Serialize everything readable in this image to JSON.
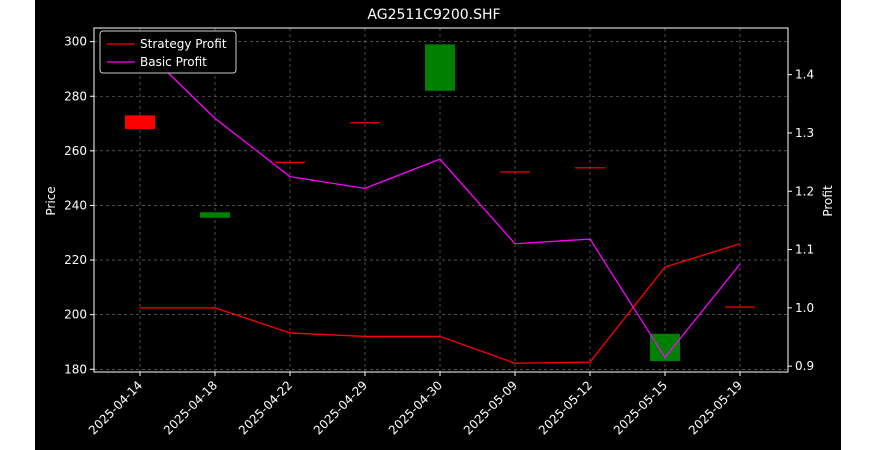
{
  "chart_data": {
    "type": "candlestick+line",
    "title": "AG2511C9200.SHF",
    "xlabel": "",
    "ylabel": "Price",
    "y2label": "Profit",
    "categories": [
      "2025-04-14",
      "2025-04-18",
      "2025-04-22",
      "2025-04-29",
      "2025-04-30",
      "2025-05-09",
      "2025-05-12",
      "2025-05-15",
      "2025-05-19"
    ],
    "ylim": [
      179,
      305
    ],
    "yticks": [
      180,
      200,
      220,
      240,
      260,
      280,
      300
    ],
    "y2lim": [
      0.89,
      1.48
    ],
    "y2ticks": [
      0.9,
      1.0,
      1.1,
      1.2,
      1.3,
      1.4
    ],
    "grid": true,
    "legend_position": "top-left",
    "candles": [
      {
        "date": "2025-04-14",
        "open": 268.0,
        "close": 273.0,
        "color": "#ff0000"
      },
      {
        "date": "2025-04-18",
        "open": 235.5,
        "close": 237.5,
        "color": "#008000"
      },
      {
        "date": "2025-04-22",
        "open": 256.0,
        "close": 256.0,
        "color": "#ff0000"
      },
      {
        "date": "2025-04-29",
        "open": 270.5,
        "close": 270.5,
        "color": "#ff0000"
      },
      {
        "date": "2025-04-30",
        "open": 282.0,
        "close": 299.0,
        "color": "#008000"
      },
      {
        "date": "2025-05-09",
        "open": 252.5,
        "close": 252.5,
        "color": "#ff0000"
      },
      {
        "date": "2025-05-12",
        "open": 254.0,
        "close": 254.0,
        "color": "#ff0000"
      },
      {
        "date": "2025-05-15",
        "open": 183.0,
        "close": 193.0,
        "color": "#008000"
      },
      {
        "date": "2025-05-19",
        "open": 203.0,
        "close": 203.0,
        "color": "#ff0000"
      }
    ],
    "series": [
      {
        "name": "Strategy Profit",
        "color": "#ff0000",
        "axis": "right",
        "values": [
          1.0,
          1.0,
          0.957,
          0.951,
          0.951,
          0.905,
          0.907,
          1.07,
          1.11
        ]
      },
      {
        "name": "Basic Profit",
        "color": "#ff00ff",
        "axis": "right",
        "values": [
          1.45,
          1.325,
          1.225,
          1.205,
          1.255,
          1.11,
          1.118,
          0.915,
          1.075
        ]
      }
    ]
  }
}
